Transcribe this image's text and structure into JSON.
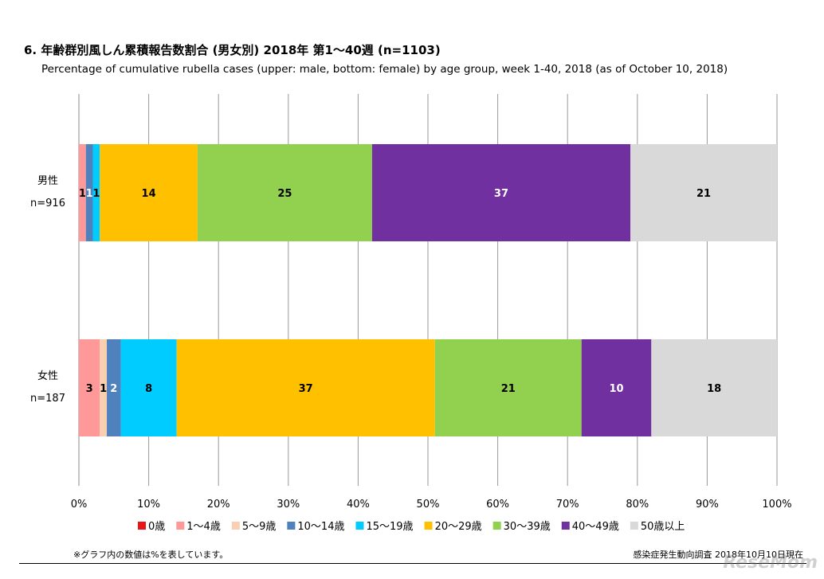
{
  "title": "6. 年齢群別風しん累積報告数割合 (男女別)  2018年 第1～40週 (n=1103)",
  "subtitle": "Percentage of cumulative rubella cases (upper: male, bottom: female) by age group, week 1-40, 2018 (as of October 10, 2018)",
  "footnote": "※グラフ内の数値は%を表しています。",
  "source": "感染症発生動向調査 2018年10月10日現在",
  "logo_text": "ReseMom",
  "chart_data": {
    "type": "bar",
    "orientation": "horizontal",
    "stacked": "percent",
    "categories": [
      {
        "label": "男性",
        "n": "n=916"
      },
      {
        "label": "女性",
        "n": "n=187"
      }
    ],
    "series": [
      {
        "name": "0歳",
        "color": "#e81416",
        "values": [
          0,
          0
        ]
      },
      {
        "name": "1～4歳",
        "color": "#ff9999",
        "values": [
          1,
          3
        ]
      },
      {
        "name": "5～9歳",
        "color": "#f8cfb0",
        "values": [
          0,
          1
        ]
      },
      {
        "name": "10～14歳",
        "color": "#4f81bd",
        "values": [
          1,
          2
        ]
      },
      {
        "name": "15～19歳",
        "color": "#00ccff",
        "values": [
          1,
          8
        ]
      },
      {
        "name": "20～29歳",
        "color": "#ffc000",
        "values": [
          14,
          37
        ]
      },
      {
        "name": "30～39歳",
        "color": "#92d050",
        "values": [
          25,
          21
        ]
      },
      {
        "name": "40～49歳",
        "color": "#7030a0",
        "values": [
          37,
          10
        ]
      },
      {
        "name": "50歳以上",
        "color": "#d9d9d9",
        "values": [
          21,
          18
        ]
      }
    ],
    "xlim": [
      0,
      100
    ],
    "xticks": [
      "0%",
      "10%",
      "20%",
      "30%",
      "40%",
      "50%",
      "60%",
      "70%",
      "80%",
      "90%",
      "100%"
    ],
    "grid": true,
    "legend": "bottom"
  }
}
